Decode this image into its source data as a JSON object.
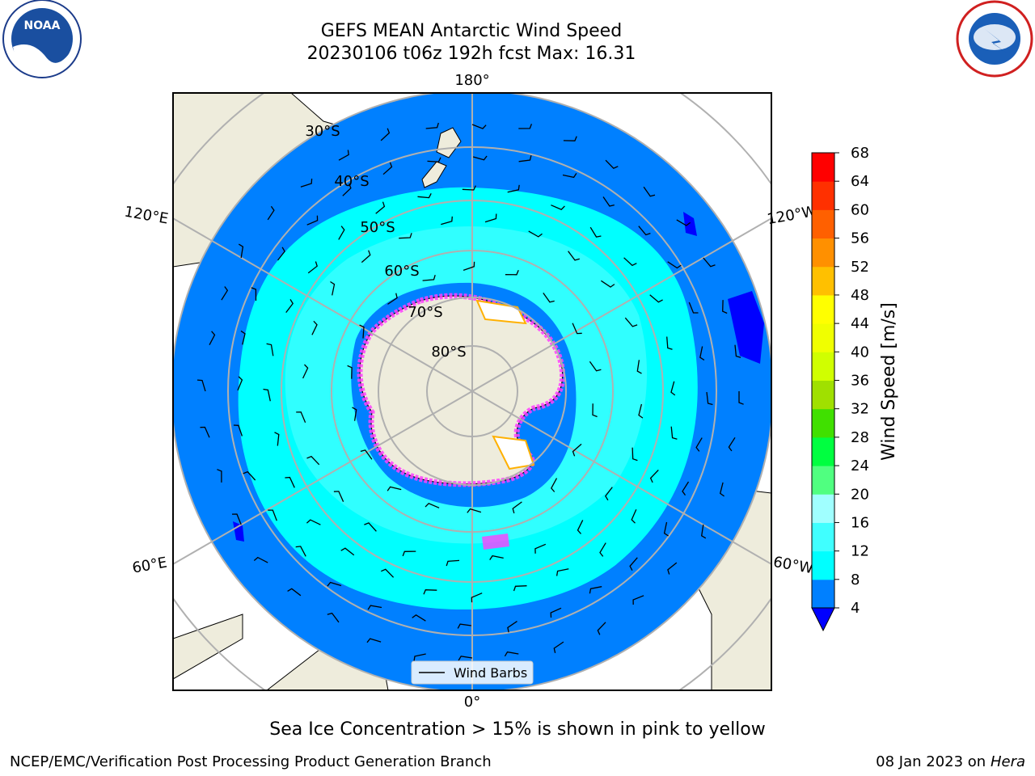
{
  "title": {
    "line1": "GEFS MEAN Antarctic Wind Speed",
    "line2": "20230106 t06z 192h fcst   Max: 16.31"
  },
  "logos": {
    "left": "NOAA",
    "right": "NATIONAL WEATHER SERVICE"
  },
  "map": {
    "projection": "south polar stereographic",
    "longitude_labels": [
      "180°",
      "120°E",
      "120°W",
      "60°E",
      "60°W",
      "0°"
    ],
    "latitude_labels": [
      "30°S",
      "40°S",
      "50°S",
      "60°S",
      "70°S",
      "80°S"
    ],
    "legend_label": "Wind Barbs"
  },
  "colorbar": {
    "label": "Wind Speed [m/s]",
    "ticks": [
      "4",
      "8",
      "12",
      "16",
      "20",
      "24",
      "28",
      "32",
      "36",
      "40",
      "44",
      "48",
      "52",
      "56",
      "60",
      "64",
      "68"
    ],
    "colors": [
      "#0080ff",
      "#00ffff",
      "#40ffff",
      "#a0ffff",
      "#50ff80",
      "#00ff40",
      "#40e000",
      "#a0e000",
      "#d0ff00",
      "#f0ff00",
      "#ffff00",
      "#ffc000",
      "#ff9000",
      "#ff6000",
      "#ff3000",
      "#ff0000"
    ],
    "under_color": "#0000ff"
  },
  "colors": {
    "land": "#eeecdc",
    "ocean_low": "#0080ff",
    "ocean_mid": "#00ffff",
    "ice": "#ff40ff"
  },
  "caption": "Sea Ice Concentration > 15% is shown in pink to yellow",
  "footer": {
    "org": "NCEP/EMC/Verification Post Processing Product Generation Branch",
    "date": "08 Jan 2023 on",
    "host": "Hera"
  }
}
